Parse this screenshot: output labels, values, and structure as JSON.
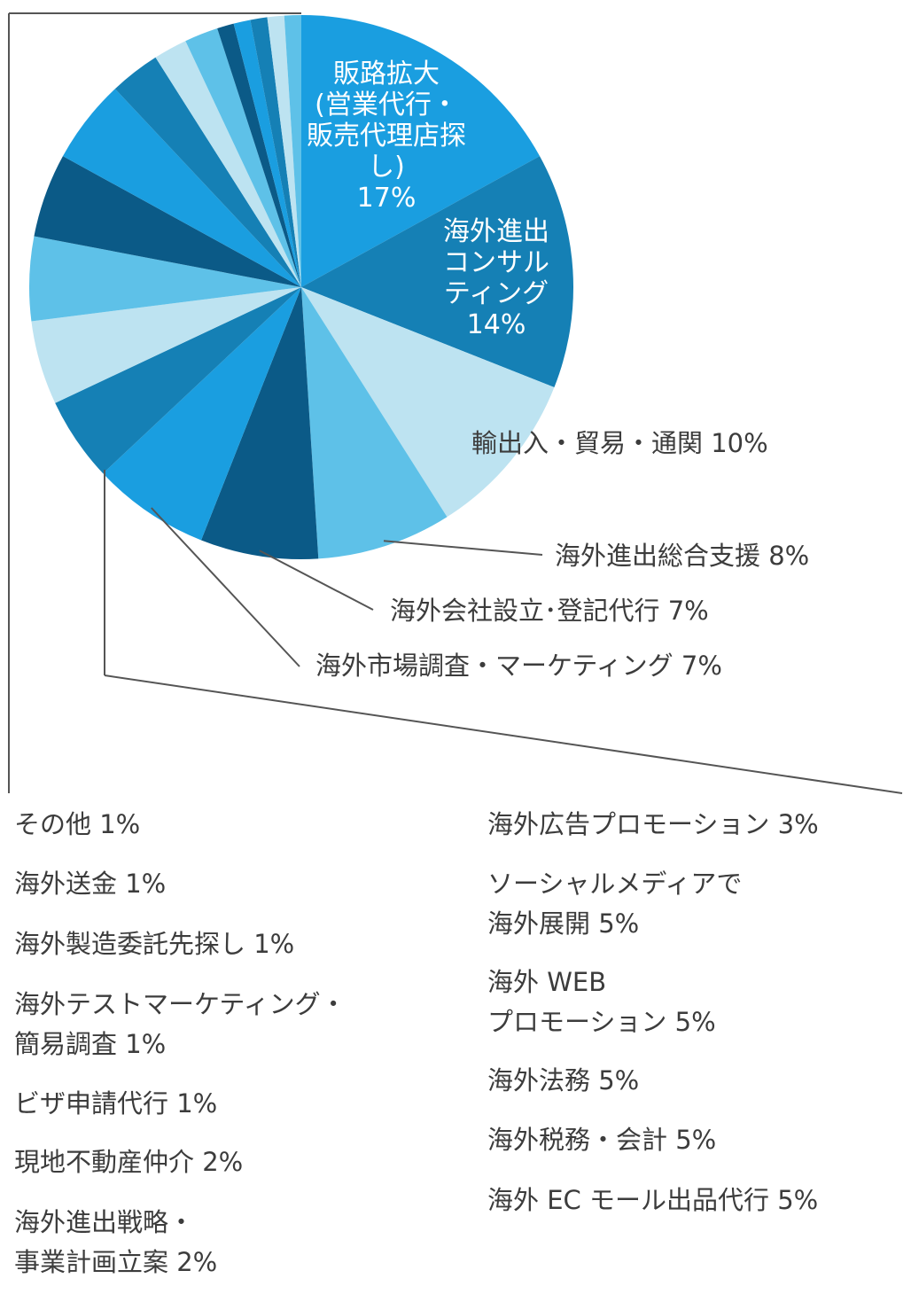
{
  "chart_data": {
    "type": "pie",
    "colors": {
      "light": "#bde3f1",
      "sky": "#5ec1e8",
      "blue": "#1a9ee0",
      "teal": "#1580b5",
      "navy": "#0b5a87",
      "label_text": "#3c3c3c",
      "leader_line": "#555555",
      "dotted_line": "#555555"
    },
    "slices": [
      {
        "label": "販路拡大\n(営業代行・\n販売代理店探し)",
        "pct_label": "17%",
        "value": 17,
        "color": "blue"
      },
      {
        "label": "海外進出\nコンサル\nティング",
        "pct_label": "14%",
        "value": 14,
        "color": "teal"
      },
      {
        "label": "輸出入・貿易・通関",
        "pct_label": "10%",
        "value": 10,
        "color": "light"
      },
      {
        "label": "海外進出総合支援",
        "pct_label": "8%",
        "value": 8,
        "color": "sky"
      },
      {
        "label": "海外会社設立･登記代行",
        "pct_label": "7%",
        "value": 7,
        "color": "navy"
      },
      {
        "label": "海外市場調査・マーケティング",
        "pct_label": "7%",
        "value": 7,
        "color": "blue"
      },
      {
        "label": "海外 EC モール出品代行",
        "pct_label": "5%",
        "value": 5,
        "color": "teal"
      },
      {
        "label": "海外税務・会計",
        "pct_label": "5%",
        "value": 5,
        "color": "light"
      },
      {
        "label": "海外法務",
        "pct_label": "5%",
        "value": 5,
        "color": "sky"
      },
      {
        "label": "海外 WEB\nプロモーション",
        "pct_label": "5%",
        "value": 5,
        "color": "navy"
      },
      {
        "label": "ソーシャルメディアで\n海外展開",
        "pct_label": "5%",
        "value": 5,
        "color": "blue"
      },
      {
        "label": "海外広告プロモーション",
        "pct_label": "3%",
        "value": 3,
        "color": "teal"
      },
      {
        "label": "海外進出戦略・\n事業計画立案",
        "pct_label": "2%",
        "value": 2,
        "color": "light"
      },
      {
        "label": "現地不動産仲介",
        "pct_label": "2%",
        "value": 2,
        "color": "sky"
      },
      {
        "label": "ビザ申請代行",
        "pct_label": "1%",
        "value": 1,
        "color": "navy"
      },
      {
        "label": "海外テストマーケティング・\n簡易調査",
        "pct_label": "1%",
        "value": 1,
        "color": "blue"
      },
      {
        "label": "海外製造委託先探し",
        "pct_label": "1%",
        "value": 1,
        "color": "teal"
      },
      {
        "label": "海外送金",
        "pct_label": "1%",
        "value": 1,
        "color": "light"
      },
      {
        "label": "その他",
        "pct_label": "1%",
        "value": 1,
        "color": "sky"
      }
    ],
    "inside_labels": [
      {
        "text": "販路拡大\n(営業代行・\n販売代理店探し)\n17%"
      },
      {
        "text": "海外進出\nコンサル\nティング\n14%"
      }
    ],
    "outside_labels": [
      {
        "text": "輸出入・貿易・通関  10%"
      },
      {
        "text": "海外進出総合支援  8%"
      },
      {
        "text": "海外会社設立･登記代行 7%"
      },
      {
        "text": "海外市場調査・マーケティング  7%"
      }
    ],
    "legend_left": [
      "その他  1%",
      "海外送金  1%",
      "海外製造委託先探し  1%",
      "海外テストマーケティング・\n簡易調査  1%",
      "ビザ申請代行  1%",
      "現地不動産仲介  2%",
      "海外進出戦略・\n事業計画立案  2%"
    ],
    "legend_right": [
      "海外広告プロモーション  3%",
      "ソーシャルメディアで\n海外展開  5%",
      "海外 WEB\nプロモーション  5%",
      "海外法務  5%",
      "海外税務・会計  5%",
      "海外 EC モール出品代行  5%"
    ]
  }
}
